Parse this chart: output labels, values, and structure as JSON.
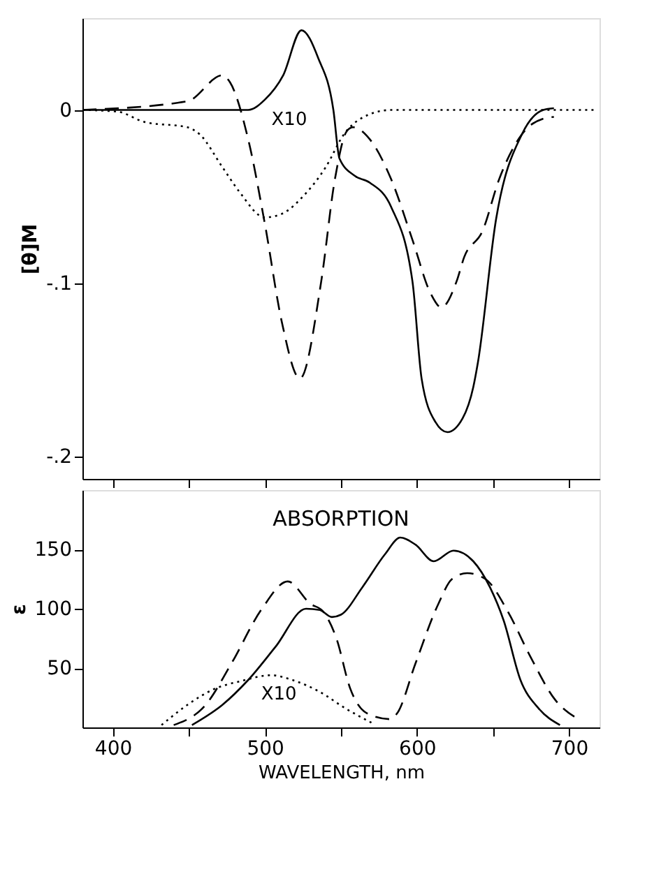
{
  "chart_data": [
    {
      "type": "line",
      "ylabel": "[θ]M",
      "xlim": [
        380,
        720
      ],
      "ylim": [
        -0.213,
        0.053
      ],
      "tick_labels": "y",
      "xticks": [
        {
          "value": 400,
          "label": null
        },
        {
          "value": 450,
          "label": null
        },
        {
          "value": 500,
          "label": null
        },
        {
          "value": 550,
          "label": null
        },
        {
          "value": 600,
          "label": null
        },
        {
          "value": 650,
          "label": null
        },
        {
          "value": 700,
          "label": null
        }
      ],
      "yticks": [
        {
          "value": 0,
          "label": "0"
        },
        {
          "value": -0.1,
          "label": "-.1"
        },
        {
          "value": -0.2,
          "label": "-.2"
        }
      ],
      "annotations": [
        "X10"
      ],
      "series": [
        {
          "color": "#000000",
          "line_style": "solid",
          "x": [
            380,
            489,
            500,
            512,
            524,
            535,
            545,
            549,
            559,
            569,
            583,
            597,
            603,
            612,
            620,
            630,
            637,
            640,
            652,
            669,
            683,
            690
          ],
          "values": [
            0,
            0,
            0.006,
            0.02,
            0.046,
            0.03,
            0,
            -0.028,
            -0.038,
            -0.042,
            -0.056,
            -0.099,
            -0.155,
            -0.18,
            -0.186,
            -0.178,
            -0.16,
            -0.146,
            -0.063,
            -0.014,
            0,
            0.001
          ]
        },
        {
          "color": "#000000",
          "line_style": "dashed",
          "x": [
            380,
            449,
            472,
            477,
            489,
            500,
            511,
            523,
            537,
            546,
            554,
            558,
            569,
            583,
            597,
            609,
            616,
            626,
            631,
            643,
            654,
            669,
            683,
            690
          ],
          "values": [
            0,
            0.005,
            0.02,
            0.016,
            -0.017,
            -0.066,
            -0.122,
            -0.155,
            -0.099,
            -0.04,
            -0.012,
            -0.01,
            -0.017,
            -0.04,
            -0.075,
            -0.106,
            -0.114,
            -0.099,
            -0.085,
            -0.07,
            -0.04,
            -0.014,
            -0.005,
            -0.004
          ]
        },
        {
          "color": "#000000",
          "line_style": "dotted",
          "x": [
            380,
            403,
            421,
            449,
            457,
            472,
            483,
            500,
            511,
            526,
            540,
            552,
            563,
            583,
            717
          ],
          "values": [
            0,
            -0.001,
            -0.007,
            -0.01,
            -0.014,
            -0.033,
            -0.047,
            -0.062,
            -0.06,
            -0.049,
            -0.033,
            -0.014,
            -0.005,
            0,
            0
          ]
        }
      ]
    },
    {
      "type": "line",
      "xlabel": "WAVELENGTH, nm",
      "ylabel": "ε",
      "xlim": [
        380,
        720
      ],
      "ylim": [
        0,
        200
      ],
      "xticks": [
        400,
        {
          "value": 450,
          "label": null
        },
        500,
        {
          "value": 550,
          "label": null
        },
        600,
        {
          "value": 650,
          "label": null
        },
        700
      ],
      "yticks": [
        50,
        100,
        150
      ],
      "annotations": [
        "ABSORPTION",
        "X10"
      ],
      "series": [
        {
          "color": "#000000",
          "line_style": "solid",
          "x": [
            452,
            472,
            489,
            507,
            527,
            536,
            544,
            550,
            564,
            579,
            589,
            599,
            611,
            624,
            637,
            648,
            657,
            668,
            680,
            694
          ],
          "values": [
            2,
            19,
            40,
            68,
            100,
            99,
            93,
            95,
            118,
            146,
            160,
            154,
            140,
            149,
            140,
            118,
            90,
            40,
            16,
            2
          ]
        },
        {
          "color": "#000000",
          "line_style": "dashed",
          "x": [
            440,
            461,
            478,
            498,
            515,
            530,
            538,
            547,
            556,
            567,
            582,
            587,
            599,
            614,
            623,
            633,
            645,
            660,
            674,
            691,
            706
          ],
          "values": [
            2,
            19,
            54,
            100,
            123,
            104,
            98,
            75,
            33,
            12,
            7,
            12,
            54,
            104,
            125,
            130,
            125,
            97,
            61,
            23,
            7
          ]
        },
        {
          "color": "#000000",
          "line_style": "dotted",
          "x": [
            432,
            449,
            466,
            484,
            504,
            518,
            536,
            553,
            570
          ],
          "values": [
            2,
            19,
            32,
            39,
            44,
            40,
            30,
            16,
            4
          ]
        }
      ]
    }
  ]
}
